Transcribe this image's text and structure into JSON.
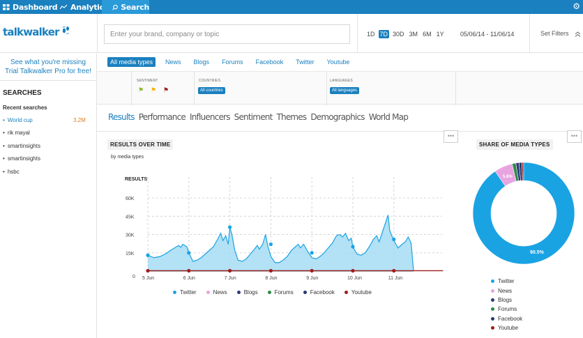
{
  "nav": {
    "tabs": [
      {
        "label": "Dashboard",
        "icon": "grid-icon"
      },
      {
        "label": "Analytics",
        "icon": "chart-line-icon"
      },
      {
        "label": "Search",
        "icon": "search-icon"
      }
    ],
    "active_index": 2,
    "gear_icon": "gear-icon"
  },
  "header": {
    "logo": "talkwalker",
    "search_placeholder": "Enter your brand, company or topic",
    "ranges": [
      "1D",
      "7D",
      "30D",
      "3M",
      "6M",
      "1Y"
    ],
    "active_range": "7D",
    "date_range": "05/06/14 - 11/06/14",
    "set_filters": "Set Filters"
  },
  "sidebar": {
    "promo_line1": "See what you're missing",
    "promo_line2": "Trial Talkwalker Pro for free!",
    "searches_title": "SEARCHES",
    "recent_title": "Recent searches",
    "items": [
      {
        "label": "World cup",
        "count": "3.2M"
      },
      {
        "label": "rik mayal",
        "count": ""
      },
      {
        "label": "smartinsights",
        "count": ""
      },
      {
        "label": "smartinsights",
        "count": ""
      },
      {
        "label": "hsbc",
        "count": ""
      }
    ]
  },
  "media_tabs": [
    "All media types",
    "News",
    "Blogs",
    "Forums",
    "Facebook",
    "Twitter",
    "Youtube"
  ],
  "filters": {
    "sentiment_label": "SENTIMENT",
    "countries_label": "COUNTRIES",
    "countries_value": "All countries",
    "languages_label": "LANGUAGES",
    "languages_value": "All languages",
    "flag_colors": [
      "#8ab81c",
      "#f2b400",
      "#a11d1d"
    ]
  },
  "sub_tabs": [
    "Results",
    "Performance",
    "Influencers",
    "Sentiment",
    "Themes",
    "Demographics",
    "World Map"
  ],
  "results_panel": {
    "title": "RESULTS OVER TIME",
    "subtitle": "by media types",
    "menu_icon": "more-dots-icon"
  },
  "share_panel": {
    "title": "SHARE OF MEDIA TYPES",
    "menu_icon": "more-dots-icon"
  },
  "colors": {
    "brand": "#1a80bf",
    "twitter": "#1aa3e3",
    "news": "#e8a4e0",
    "blogs": "#2e3a7a",
    "forums": "#2e8a4a",
    "facebook": "#243a6e",
    "youtube": "#a11d1d"
  },
  "chart_data": [
    {
      "type": "area",
      "title": "",
      "ylabel": "RESULTS",
      "xlabel": "",
      "x_ticks": [
        "5 Jun",
        "6 Jun",
        "7 Jun",
        "8 Jun",
        "9 Jun",
        "10 Jun",
        "11 Jun"
      ],
      "y_ticks": [
        "0",
        "15K",
        "30K",
        "45K",
        "60K"
      ],
      "ylim": [
        0,
        60000
      ],
      "xlim": [
        0,
        7.2
      ],
      "grid": true,
      "legend_position": "bottom",
      "series": [
        {
          "name": "Twitter",
          "color": "#1aa3e3",
          "points": [
            [
              0,
              13000
            ],
            [
              0.15,
              11000
            ],
            [
              0.3,
              12000
            ],
            [
              0.45,
              14500
            ],
            [
              0.55,
              17000
            ],
            [
              0.65,
              19000
            ],
            [
              0.75,
              21000
            ],
            [
              0.8,
              19500
            ],
            [
              0.85,
              22000
            ],
            [
              0.9,
              21000
            ],
            [
              0.95,
              20000
            ],
            [
              1.0,
              15000
            ],
            [
              1.1,
              8000
            ],
            [
              1.2,
              9000
            ],
            [
              1.3,
              11000
            ],
            [
              1.4,
              14000
            ],
            [
              1.5,
              17000
            ],
            [
              1.6,
              20000
            ],
            [
              1.7,
              26000
            ],
            [
              1.78,
              31000
            ],
            [
              1.83,
              25000
            ],
            [
              1.9,
              29000
            ],
            [
              1.96,
              22000
            ],
            [
              2.0,
              36000
            ],
            [
              2.05,
              30000
            ],
            [
              2.12,
              17000
            ],
            [
              2.2,
              9000
            ],
            [
              2.3,
              8000
            ],
            [
              2.4,
              10000
            ],
            [
              2.5,
              14000
            ],
            [
              2.6,
              18000
            ],
            [
              2.67,
              21000
            ],
            [
              2.72,
              18000
            ],
            [
              2.8,
              22000
            ],
            [
              2.87,
              30000
            ],
            [
              2.93,
              20000
            ],
            [
              3.0,
              12000
            ],
            [
              3.1,
              7000
            ],
            [
              3.2,
              7000
            ],
            [
              3.3,
              9000
            ],
            [
              3.4,
              12000
            ],
            [
              3.5,
              17000
            ],
            [
              3.6,
              20000
            ],
            [
              3.67,
              22000
            ],
            [
              3.72,
              19000
            ],
            [
              3.8,
              22000
            ],
            [
              3.9,
              16000
            ],
            [
              4.0,
              11000
            ],
            [
              4.1,
              10000
            ],
            [
              4.2,
              12000
            ],
            [
              4.3,
              15000
            ],
            [
              4.4,
              19000
            ],
            [
              4.5,
              23000
            ],
            [
              4.6,
              29000
            ],
            [
              4.68,
              30000
            ],
            [
              4.75,
              28000
            ],
            [
              4.82,
              31000
            ],
            [
              4.9,
              25000
            ],
            [
              4.96,
              27000
            ],
            [
              5.0,
              20000
            ],
            [
              5.1,
              14000
            ],
            [
              5.2,
              13000
            ],
            [
              5.3,
              15000
            ],
            [
              5.4,
              20000
            ],
            [
              5.5,
              26000
            ],
            [
              5.58,
              29000
            ],
            [
              5.64,
              24000
            ],
            [
              5.72,
              32000
            ],
            [
              5.8,
              40000
            ],
            [
              5.86,
              46000
            ],
            [
              5.9,
              33000
            ],
            [
              6.0,
              25000
            ],
            [
              6.1,
              19000
            ],
            [
              6.2,
              22000
            ],
            [
              6.28,
              24000
            ],
            [
              6.35,
              28000
            ],
            [
              6.42,
              23000
            ],
            [
              6.48,
              0
            ]
          ],
          "markers": [
            [
              0,
              13000
            ],
            [
              1.0,
              15000
            ],
            [
              2.0,
              36000
            ],
            [
              3.0,
              22000
            ],
            [
              4.0,
              15000
            ],
            [
              5.0,
              20000
            ],
            [
              6.0,
              26000
            ]
          ]
        },
        {
          "name": "News",
          "color": "#e8a4e0",
          "points": [
            [
              0,
              200
            ],
            [
              6.48,
              200
            ]
          ],
          "markers": []
        },
        {
          "name": "Blogs",
          "color": "#2e3a7a",
          "points": [
            [
              0,
              100
            ],
            [
              6.48,
              100
            ]
          ],
          "markers": []
        },
        {
          "name": "Forums",
          "color": "#2e8a4a",
          "points": [
            [
              0,
              80
            ],
            [
              6.48,
              80
            ]
          ],
          "markers": []
        },
        {
          "name": "Facebook",
          "color": "#243a6e",
          "points": [
            [
              0,
              150
            ],
            [
              6.48,
              150
            ]
          ],
          "markers": []
        },
        {
          "name": "Youtube",
          "color": "#a11d1d",
          "points": [
            [
              0,
              300
            ],
            [
              7.2,
              300
            ]
          ],
          "markers": [
            [
              0,
              300
            ],
            [
              1,
              300
            ],
            [
              2,
              300
            ],
            [
              3,
              300
            ],
            [
              4,
              300
            ],
            [
              5,
              300
            ],
            [
              6,
              300
            ]
          ]
        }
      ]
    },
    {
      "type": "pie",
      "title": "",
      "legend_position": "bottom",
      "slices": [
        {
          "name": "Twitter",
          "value": 90.5,
          "color": "#1aa3e3",
          "label": "90.5%"
        },
        {
          "name": "News",
          "value": 5.8,
          "color": "#e8a4e0",
          "label": "5.8%"
        },
        {
          "name": "Blogs",
          "value": 1.0,
          "color": "#2e3a7a",
          "label": ""
        },
        {
          "name": "Forums",
          "value": 1.2,
          "color": "#2e8a4a",
          "label": ""
        },
        {
          "name": "Facebook",
          "value": 0.9,
          "color": "#243a6e",
          "label": ""
        },
        {
          "name": "Youtube",
          "value": 0.6,
          "color": "#a11d1d",
          "label": ""
        }
      ]
    }
  ]
}
